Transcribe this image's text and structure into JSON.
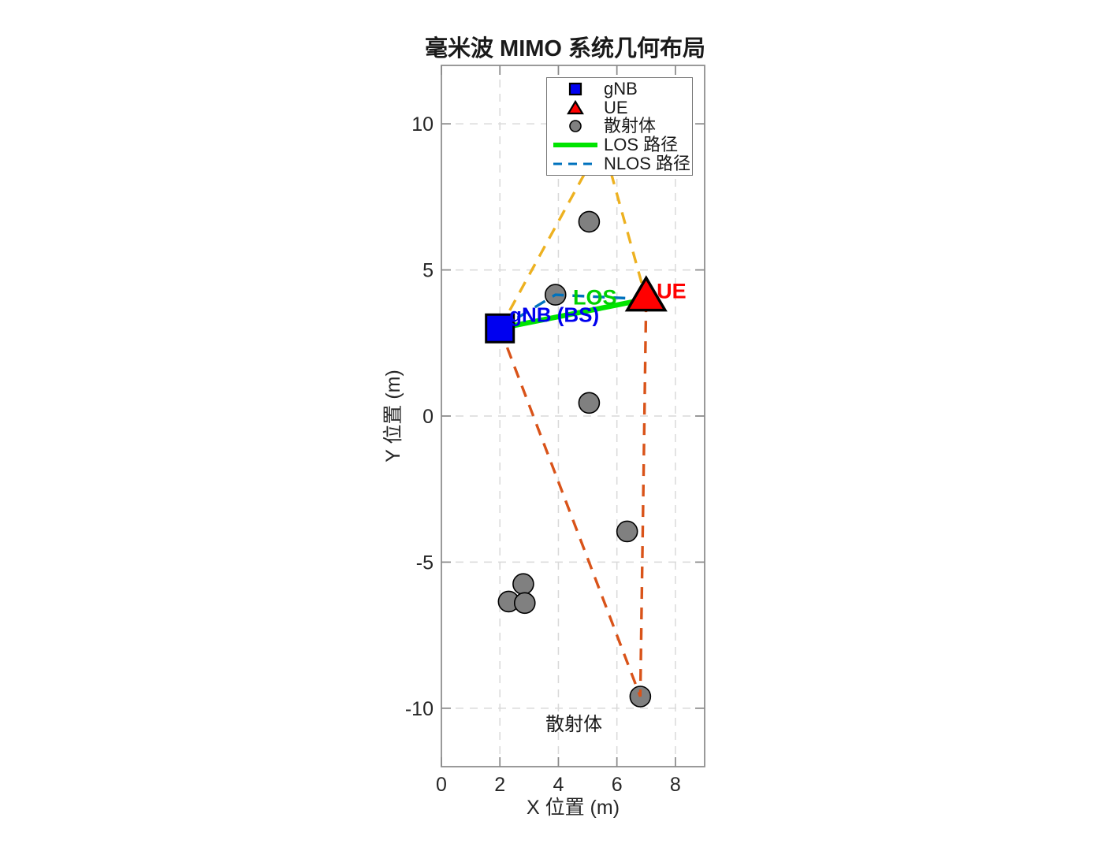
{
  "chart_data": {
    "type": "scatter",
    "title": "毫米波 MIMO 系统几何布局",
    "xlabel": "X 位置 (m)",
    "ylabel": "Y 位置 (m)",
    "xlim": [
      0,
      9
    ],
    "ylim": [
      -12,
      12
    ],
    "xticks": [
      0,
      2,
      4,
      6,
      8
    ],
    "yticks": [
      -10,
      -5,
      0,
      5,
      10
    ],
    "grid": true,
    "axis_color": "#898989",
    "grid_color": "#d9d9d9",
    "tick_label_color": "#262626",
    "gnb": {
      "x": 2,
      "y": 3,
      "fill": "#0000f0",
      "edge": "#000000"
    },
    "ue": {
      "x": 7,
      "y": 4,
      "fill": "#ff0000",
      "edge": "#000000"
    },
    "scatterers": {
      "fill": "#808080",
      "edge": "#000000",
      "points": [
        {
          "x": 5.5,
          "y": 9.4
        },
        {
          "x": 5.05,
          "y": 6.65
        },
        {
          "x": 3.9,
          "y": 4.15
        },
        {
          "x": 5.05,
          "y": 0.45
        },
        {
          "x": 6.35,
          "y": -3.95
        },
        {
          "x": 2.8,
          "y": -5.75
        },
        {
          "x": 2.3,
          "y": -6.35
        },
        {
          "x": 2.85,
          "y": -6.4
        },
        {
          "x": 6.8,
          "y": -9.6
        }
      ]
    },
    "los_path": {
      "color": "#00e400",
      "width": 6.5,
      "points": [
        [
          2,
          3
        ],
        [
          7,
          4
        ]
      ]
    },
    "nlos_paths": [
      {
        "color": "#edb120",
        "points": [
          [
            2,
            3
          ],
          [
            5.5,
            9.4
          ],
          [
            7,
            4
          ]
        ]
      },
      {
        "color": "#d95319",
        "points": [
          [
            2,
            3
          ],
          [
            6.8,
            -9.6
          ],
          [
            7,
            4
          ]
        ]
      },
      {
        "color": "#0072bd",
        "points": [
          [
            2,
            3
          ],
          [
            3.9,
            4.15
          ],
          [
            7,
            4
          ]
        ]
      }
    ],
    "annotations": [
      {
        "name": "gnb-label",
        "text": "gNB (BS)",
        "x": 2.32,
        "y": 3.47,
        "color": "#0000ee",
        "bold": true,
        "size": 26,
        "align": "left"
      },
      {
        "name": "los-label",
        "text": "LOS",
        "x": 4.5,
        "y": 4.06,
        "color": "#00d000",
        "bold": true,
        "size": 27,
        "align": "left"
      },
      {
        "name": "ue-label",
        "text": "UE",
        "x": 7.36,
        "y": 4.28,
        "color": "#ff0000",
        "bold": true,
        "size": 27,
        "align": "left"
      },
      {
        "name": "scatterers-label",
        "text": "散射体",
        "x": 4.53,
        "y": -10.52,
        "color": "#1a1a1a",
        "bold": false,
        "size": 24,
        "align": "center"
      }
    ],
    "legend": {
      "items": [
        {
          "label": "gNB",
          "type": "marker",
          "shape": "square",
          "fill": "#0000f0",
          "edge": "#000000"
        },
        {
          "label": "UE",
          "type": "marker",
          "shape": "triangle",
          "fill": "#ff0000",
          "edge": "#000000"
        },
        {
          "label": "散射体",
          "type": "marker",
          "shape": "circle",
          "fill": "#808080",
          "edge": "#000000"
        },
        {
          "label": "LOS 路径",
          "type": "line",
          "stroke": "#00e400",
          "dash": "solid",
          "width": 6
        },
        {
          "label": "NLOS 路径",
          "type": "line",
          "stroke": "#0072bd",
          "dash": "dashed",
          "width": 3
        }
      ]
    }
  }
}
